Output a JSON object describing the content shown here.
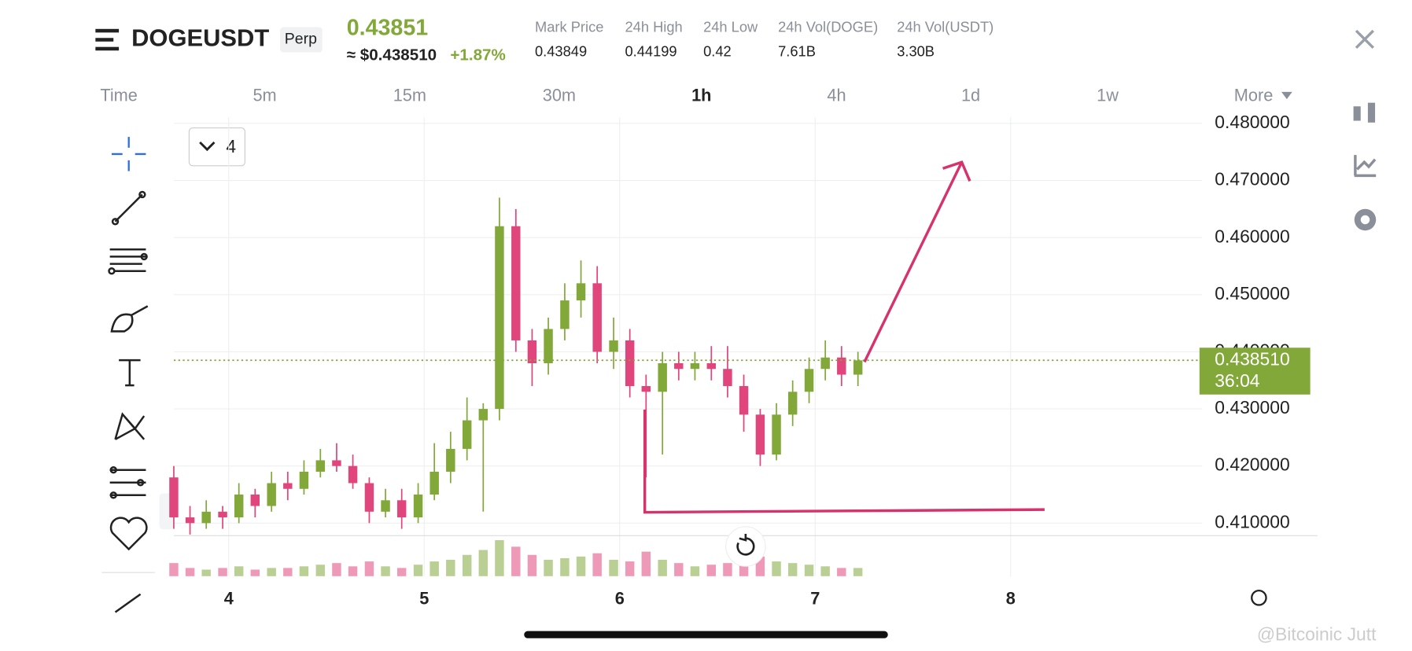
{
  "header": {
    "symbol": "DOGEUSDT",
    "badge": "Perp",
    "last_price": "0.43851",
    "usd_price": "≈ $0.438510",
    "change": "+1.87%",
    "stats": [
      {
        "label": "Mark Price",
        "value": "0.43849"
      },
      {
        "label": "24h High",
        "value": "0.44199"
      },
      {
        "label": "24h Low",
        "value": "0.42"
      },
      {
        "label": "24h Vol(DOGE)",
        "value": "7.61B"
      },
      {
        "label": "24h Vol(USDT)",
        "value": "3.30B"
      }
    ]
  },
  "timeframes": [
    "Time",
    "5m",
    "15m",
    "30m",
    "1h",
    "4h",
    "1d",
    "1w",
    "More"
  ],
  "indicator_count": "4",
  "watermark": "@Bitcoinic Jutt",
  "chart_data": {
    "type": "candlestick",
    "x": [
      3.719,
      3.802,
      3.885,
      3.969,
      4.052,
      4.135,
      4.219,
      4.302,
      4.385,
      4.469,
      4.552,
      4.635,
      4.719,
      4.802,
      4.885,
      4.969,
      5.052,
      5.135,
      5.219,
      5.302,
      5.385,
      5.469,
      5.552,
      5.635,
      5.719,
      5.802,
      5.885,
      5.969,
      6.052,
      6.135,
      6.219,
      6.302,
      6.385,
      6.469,
      6.552,
      6.635,
      6.719,
      6.802,
      6.885,
      6.969,
      7.052,
      7.135,
      7.219
    ],
    "open": [
      0.418,
      0.411,
      0.41,
      0.412,
      0.411,
      0.415,
      0.413,
      0.417,
      0.416,
      0.419,
      0.421,
      0.42,
      0.417,
      0.412,
      0.414,
      0.411,
      0.415,
      0.419,
      0.423,
      0.428,
      0.43,
      0.462,
      0.442,
      0.438,
      0.444,
      0.449,
      0.452,
      0.44,
      0.442,
      0.434,
      0.433,
      0.438,
      0.437,
      0.438,
      0.437,
      0.434,
      0.429,
      0.422,
      0.429,
      0.433,
      0.437,
      0.439,
      0.436
    ],
    "high": [
      0.42,
      0.413,
      0.414,
      0.413,
      0.417,
      0.416,
      0.419,
      0.419,
      0.421,
      0.423,
      0.424,
      0.422,
      0.418,
      0.416,
      0.416,
      0.417,
      0.424,
      0.426,
      0.432,
      0.431,
      0.467,
      0.465,
      0.444,
      0.446,
      0.452,
      0.456,
      0.455,
      0.446,
      0.444,
      0.436,
      0.44,
      0.44,
      0.44,
      0.441,
      0.441,
      0.436,
      0.43,
      0.431,
      0.435,
      0.439,
      0.442,
      0.441,
      0.44
    ],
    "low": [
      0.409,
      0.408,
      0.409,
      0.409,
      0.41,
      0.411,
      0.412,
      0.414,
      0.415,
      0.418,
      0.419,
      0.416,
      0.41,
      0.411,
      0.409,
      0.41,
      0.414,
      0.417,
      0.421,
      0.412,
      0.428,
      0.44,
      0.434,
      0.436,
      0.442,
      0.446,
      0.438,
      0.437,
      0.432,
      0.418,
      0.422,
      0.435,
      0.435,
      0.435,
      0.432,
      0.426,
      0.42,
      0.421,
      0.427,
      0.431,
      0.435,
      0.434,
      0.434
    ],
    "close": [
      0.411,
      0.41,
      0.412,
      0.411,
      0.415,
      0.413,
      0.417,
      0.416,
      0.419,
      0.421,
      0.42,
      0.417,
      0.412,
      0.414,
      0.411,
      0.415,
      0.419,
      0.423,
      0.428,
      0.43,
      0.462,
      0.442,
      0.438,
      0.444,
      0.449,
      0.452,
      0.44,
      0.442,
      0.434,
      0.433,
      0.438,
      0.437,
      0.438,
      0.437,
      0.434,
      0.429,
      0.422,
      0.429,
      0.433,
      0.437,
      0.439,
      0.436,
      0.4385
    ],
    "volume": [
      8,
      5,
      4,
      5,
      6,
      4,
      5,
      5,
      6,
      7,
      8,
      6,
      9,
      6,
      5,
      7,
      9,
      10,
      13,
      16,
      22,
      18,
      13,
      10,
      11,
      12,
      14,
      10,
      9,
      15,
      10,
      8,
      6,
      7,
      8,
      9,
      12,
      9,
      8,
      7,
      6,
      5,
      5
    ],
    "xlim": [
      3.719,
      8.98
    ],
    "xticks": [
      4,
      5,
      6,
      7,
      8
    ],
    "ylim": [
      0.4078,
      0.4811
    ],
    "yticks": [
      {
        "value": 0.41,
        "label": "0.410000"
      },
      {
        "value": 0.42,
        "label": "0.420000"
      },
      {
        "value": 0.43,
        "label": "0.430000"
      },
      {
        "value": 0.44,
        "label": "0.440000"
      },
      {
        "value": 0.45,
        "label": "0.450000"
      },
      {
        "value": 0.46,
        "label": "0.460000"
      },
      {
        "value": 0.47,
        "label": "0.470000"
      },
      {
        "value": 0.48,
        "label": "0.480000"
      }
    ],
    "grid": true,
    "up_color": "#82a83a",
    "down_color": "#e0457b",
    "current_price": 0.43851,
    "current_price_label": "0.438510",
    "countdown": "36:04"
  }
}
